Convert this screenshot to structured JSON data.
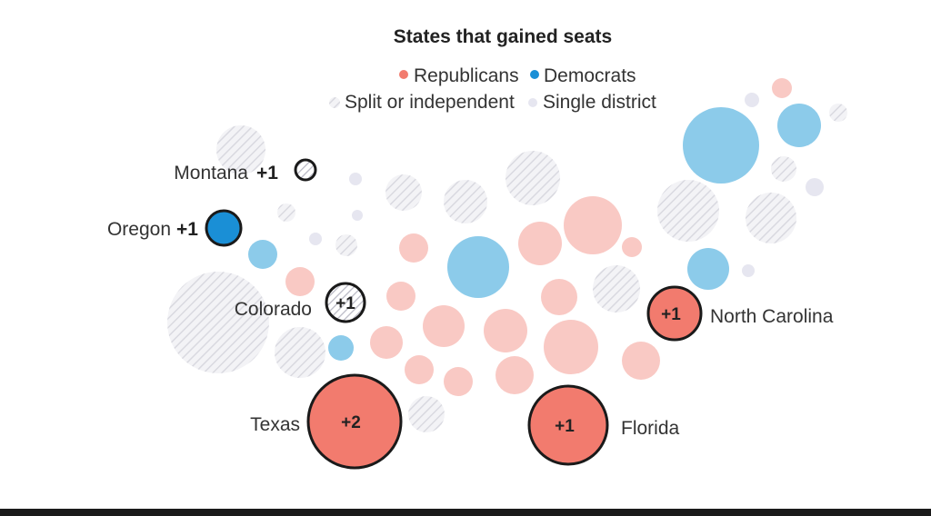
{
  "title": "States that gained seats",
  "legend": {
    "republicans": "Republicans",
    "democrats": "Democrats",
    "split": "Split or independent",
    "single": "Single district"
  },
  "colors": {
    "republican": "#f27b6e",
    "republican_faded": "#f9c9c4",
    "democrat": "#1a8fd6",
    "democrat_faded": "#8ccbea",
    "split_faded": "#e4e4e8",
    "single": "#e6e6f0",
    "outline": "#1a1a1a"
  },
  "highlighted": [
    {
      "state": "Montana",
      "change": "+1",
      "party": "split"
    },
    {
      "state": "Oregon",
      "change": "+1",
      "party": "democrat"
    },
    {
      "state": "Colorado",
      "change": "+1",
      "party": "split"
    },
    {
      "state": "North Carolina",
      "change": "+1",
      "party": "republican"
    },
    {
      "state": "Texas",
      "change": "+2",
      "party": "republican"
    },
    {
      "state": "Florida",
      "change": "+1",
      "party": "republican"
    }
  ]
}
